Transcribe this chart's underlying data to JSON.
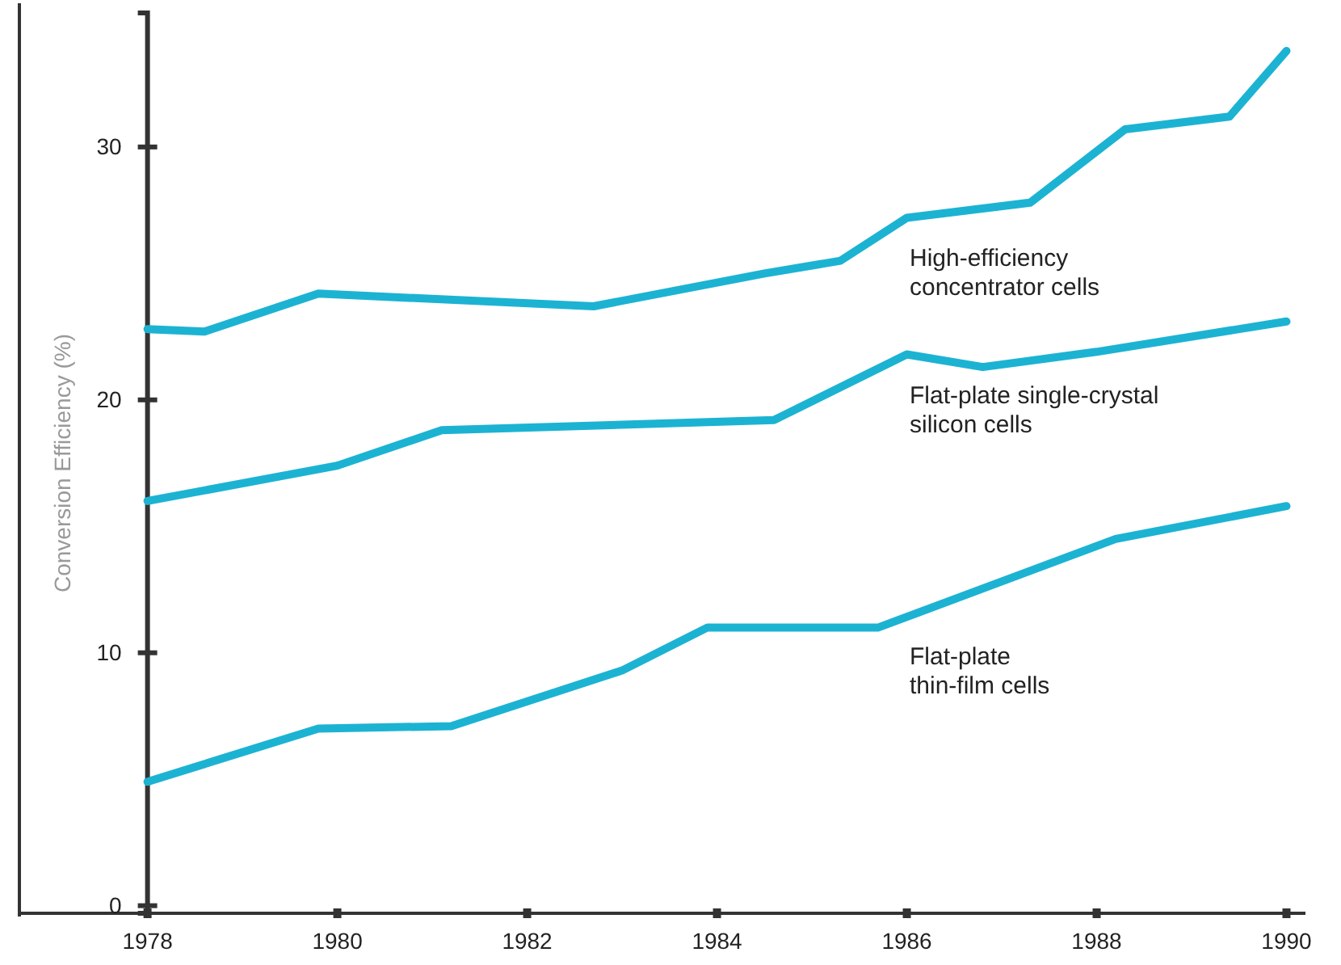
{
  "chart_data": {
    "type": "line",
    "ylabel": "Conversion Efficiency (%)",
    "xlim": [
      1976.65,
      1990.2
    ],
    "ylim": [
      -0.3,
      35.3
    ],
    "xticks": [
      1978,
      1980,
      1982,
      1984,
      1986,
      1988,
      1990
    ],
    "yticks": [
      0,
      10,
      20,
      30
    ],
    "grid": false,
    "legend": false,
    "marker": "none",
    "line_style": "solid",
    "series": [
      {
        "name": "High-efficiency\nconcentrator cells",
        "color": "#1cb3d3",
        "x": [
          1978,
          1978.6,
          1979.8,
          1982.7,
          1984.5,
          1985.3,
          1986,
          1987.3,
          1988.3,
          1989.4,
          1990
        ],
        "values": [
          22.8,
          22.7,
          24.2,
          23.7,
          25,
          25.5,
          27.2,
          27.8,
          30.7,
          31.2,
          33.8
        ]
      },
      {
        "name": "Flat-plate single-crystal\nsilicon cells",
        "color": "#1cb3d3",
        "x": [
          1978,
          1980,
          1981.1,
          1984.6,
          1986,
          1986.8,
          1988,
          1990
        ],
        "values": [
          16,
          17.4,
          18.8,
          19.2,
          21.8,
          21.3,
          21.9,
          23.1
        ]
      },
      {
        "name": "Flat-plate\nthin-film cells",
        "color": "#1cb3d3",
        "x": [
          1978,
          1979.8,
          1981.2,
          1983,
          1983.9,
          1985.7,
          1988.2,
          1990
        ],
        "values": [
          4.9,
          7,
          7.1,
          9.3,
          11,
          11,
          14.5,
          15.8
        ]
      }
    ]
  }
}
